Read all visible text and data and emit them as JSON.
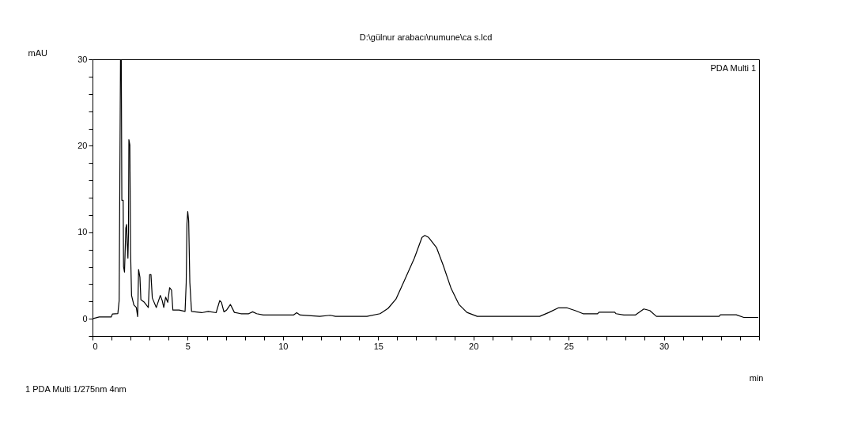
{
  "chart_data": {
    "type": "line",
    "title": "D:\\gülnur arabacı\\numune\\ca s.lcd",
    "xlabel": "min",
    "ylabel": "mAU",
    "annotations": [
      "PDA Multi 1",
      "1     PDA Multi 1/275nm 4nm"
    ],
    "xlim": [
      0,
      35
    ],
    "ylim": [
      -2,
      30
    ],
    "xticks": [
      0,
      {
        "value": 1,
        "label": null
      },
      {
        "value": 2,
        "label": null
      },
      {
        "value": 3,
        "label": null
      },
      {
        "value": 4,
        "label": null
      },
      5,
      {
        "value": 6,
        "label": null
      },
      {
        "value": 7,
        "label": null
      },
      {
        "value": 8,
        "label": null
      },
      {
        "value": 9,
        "label": null
      },
      10,
      {
        "value": 11,
        "label": null
      },
      {
        "value": 12,
        "label": null
      },
      {
        "value": 13,
        "label": null
      },
      {
        "value": 14,
        "label": null
      },
      15,
      {
        "value": 16,
        "label": null
      },
      {
        "value": 17,
        "label": null
      },
      {
        "value": 18,
        "label": null
      },
      {
        "value": 19,
        "label": null
      },
      20,
      {
        "value": 21,
        "label": null
      },
      {
        "value": 22,
        "label": null
      },
      {
        "value": 23,
        "label": null
      },
      {
        "value": 24,
        "label": null
      },
      25,
      {
        "value": 26,
        "label": null
      },
      {
        "value": 27,
        "label": null
      },
      {
        "value": 28,
        "label": null
      },
      {
        "value": 29,
        "label": null
      },
      30,
      {
        "value": 31,
        "label": null
      },
      {
        "value": 32,
        "label": null
      },
      {
        "value": 33,
        "label": null
      },
      {
        "value": 34,
        "label": null
      },
      {
        "value": 35,
        "label": null
      }
    ],
    "yticks": [
      {
        "value": -2,
        "label": null
      },
      0,
      {
        "value": 2,
        "label": null
      },
      {
        "value": 4,
        "label": null
      },
      {
        "value": 6,
        "label": null
      },
      {
        "value": 8,
        "label": null
      },
      10,
      {
        "value": 12,
        "label": null
      },
      {
        "value": 14,
        "label": null
      },
      {
        "value": 16,
        "label": null
      },
      {
        "value": 18,
        "label": null
      },
      20,
      {
        "value": 22,
        "label": null
      },
      {
        "value": 24,
        "label": null
      },
      {
        "value": 26,
        "label": null
      },
      {
        "value": 28,
        "label": null
      },
      30
    ],
    "grid": false,
    "marker": "none",
    "line_style": "solid",
    "series": [
      {
        "color": "#000000",
        "x": [
          0,
          0.35,
          0.98,
          1.05,
          1.33,
          1.4,
          1.47,
          1.51,
          1.54,
          1.61,
          1.63,
          1.68,
          1.75,
          1.79,
          1.82,
          1.86,
          1.89,
          1.91,
          1.96,
          2.0,
          2.05,
          2.17,
          2.3,
          2.37,
          2.42,
          2.49,
          2.54,
          2.72,
          2.93,
          3.0,
          3.07,
          3.14,
          3.35,
          3.56,
          3.66,
          3.74,
          3.84,
          3.95,
          4.05,
          4.15,
          4.22,
          4.55,
          4.86,
          4.92,
          4.96,
          5.0,
          5.05,
          5.11,
          5.2,
          5.73,
          6.08,
          6.49,
          6.68,
          6.77,
          6.9,
          7.04,
          7.24,
          7.45,
          7.79,
          8.2,
          8.41,
          8.62,
          8.97,
          9.86,
          10.55,
          10.72,
          10.9,
          11.93,
          12.48,
          12.76,
          14.41,
          15.1,
          15.52,
          15.93,
          16.34,
          16.9,
          17.3,
          17.45,
          17.65,
          18.07,
          18.41,
          18.83,
          19.24,
          19.66,
          20.2,
          22.14,
          23.48,
          23.97,
          24.45,
          24.93,
          25.34,
          25.76,
          26.52,
          26.6,
          27.42,
          27.49,
          27.9,
          28.5,
          28.95,
          29.26,
          29.61,
          32.9,
          32.97,
          33.8,
          34.2,
          34.96
        ],
        "values": [
          0,
          0.2,
          0.2,
          0.55,
          0.6,
          2.1,
          30,
          30,
          13.7,
          13.7,
          6.0,
          5.4,
          10.5,
          10.9,
          8.8,
          7.0,
          10.0,
          20.7,
          20.1,
          7.6,
          2.7,
          1.6,
          1.3,
          0.25,
          5.7,
          4.8,
          2.2,
          1.9,
          1.3,
          5.1,
          5.1,
          2.4,
          1.3,
          2.7,
          2.1,
          1.3,
          2.5,
          1.9,
          3.6,
          3.3,
          1.0,
          1.0,
          0.85,
          4.2,
          11.0,
          12.4,
          11.3,
          4.2,
          0.85,
          0.7,
          0.85,
          0.7,
          2.1,
          1.9,
          0.8,
          1.0,
          1.65,
          0.73,
          0.58,
          0.58,
          0.8,
          0.58,
          0.43,
          0.43,
          0.43,
          0.7,
          0.43,
          0.27,
          0.4,
          0.27,
          0.27,
          0.58,
          1.2,
          2.26,
          4.24,
          7.0,
          9.4,
          9.63,
          9.4,
          8.2,
          6.2,
          3.5,
          1.65,
          0.73,
          0.27,
          0.27,
          0.27,
          0.73,
          1.25,
          1.25,
          0.95,
          0.58,
          0.58,
          0.76,
          0.76,
          0.58,
          0.43,
          0.43,
          1.13,
          0.95,
          0.27,
          0.27,
          0.46,
          0.46,
          0.15,
          0.15
        ]
      }
    ]
  }
}
